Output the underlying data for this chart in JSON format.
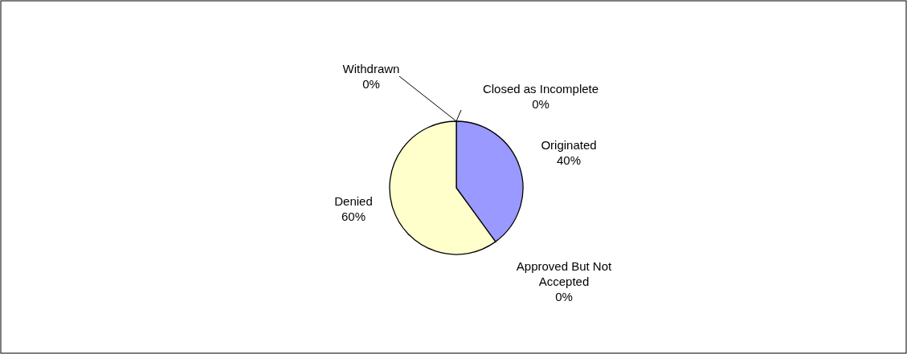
{
  "chart_data": {
    "type": "pie",
    "categories": [
      "Originated",
      "Approved But Not Accepted",
      "Denied",
      "Withdrawn",
      "Closed as Incomplete"
    ],
    "values": [
      40,
      0,
      60,
      0,
      0
    ],
    "colors": [
      "#9999ff",
      "#993366",
      "#ffffcc",
      "#ccffff",
      "#660066"
    ],
    "value_labels": [
      "40%",
      "0%",
      "60%",
      "0%",
      "0%"
    ]
  }
}
